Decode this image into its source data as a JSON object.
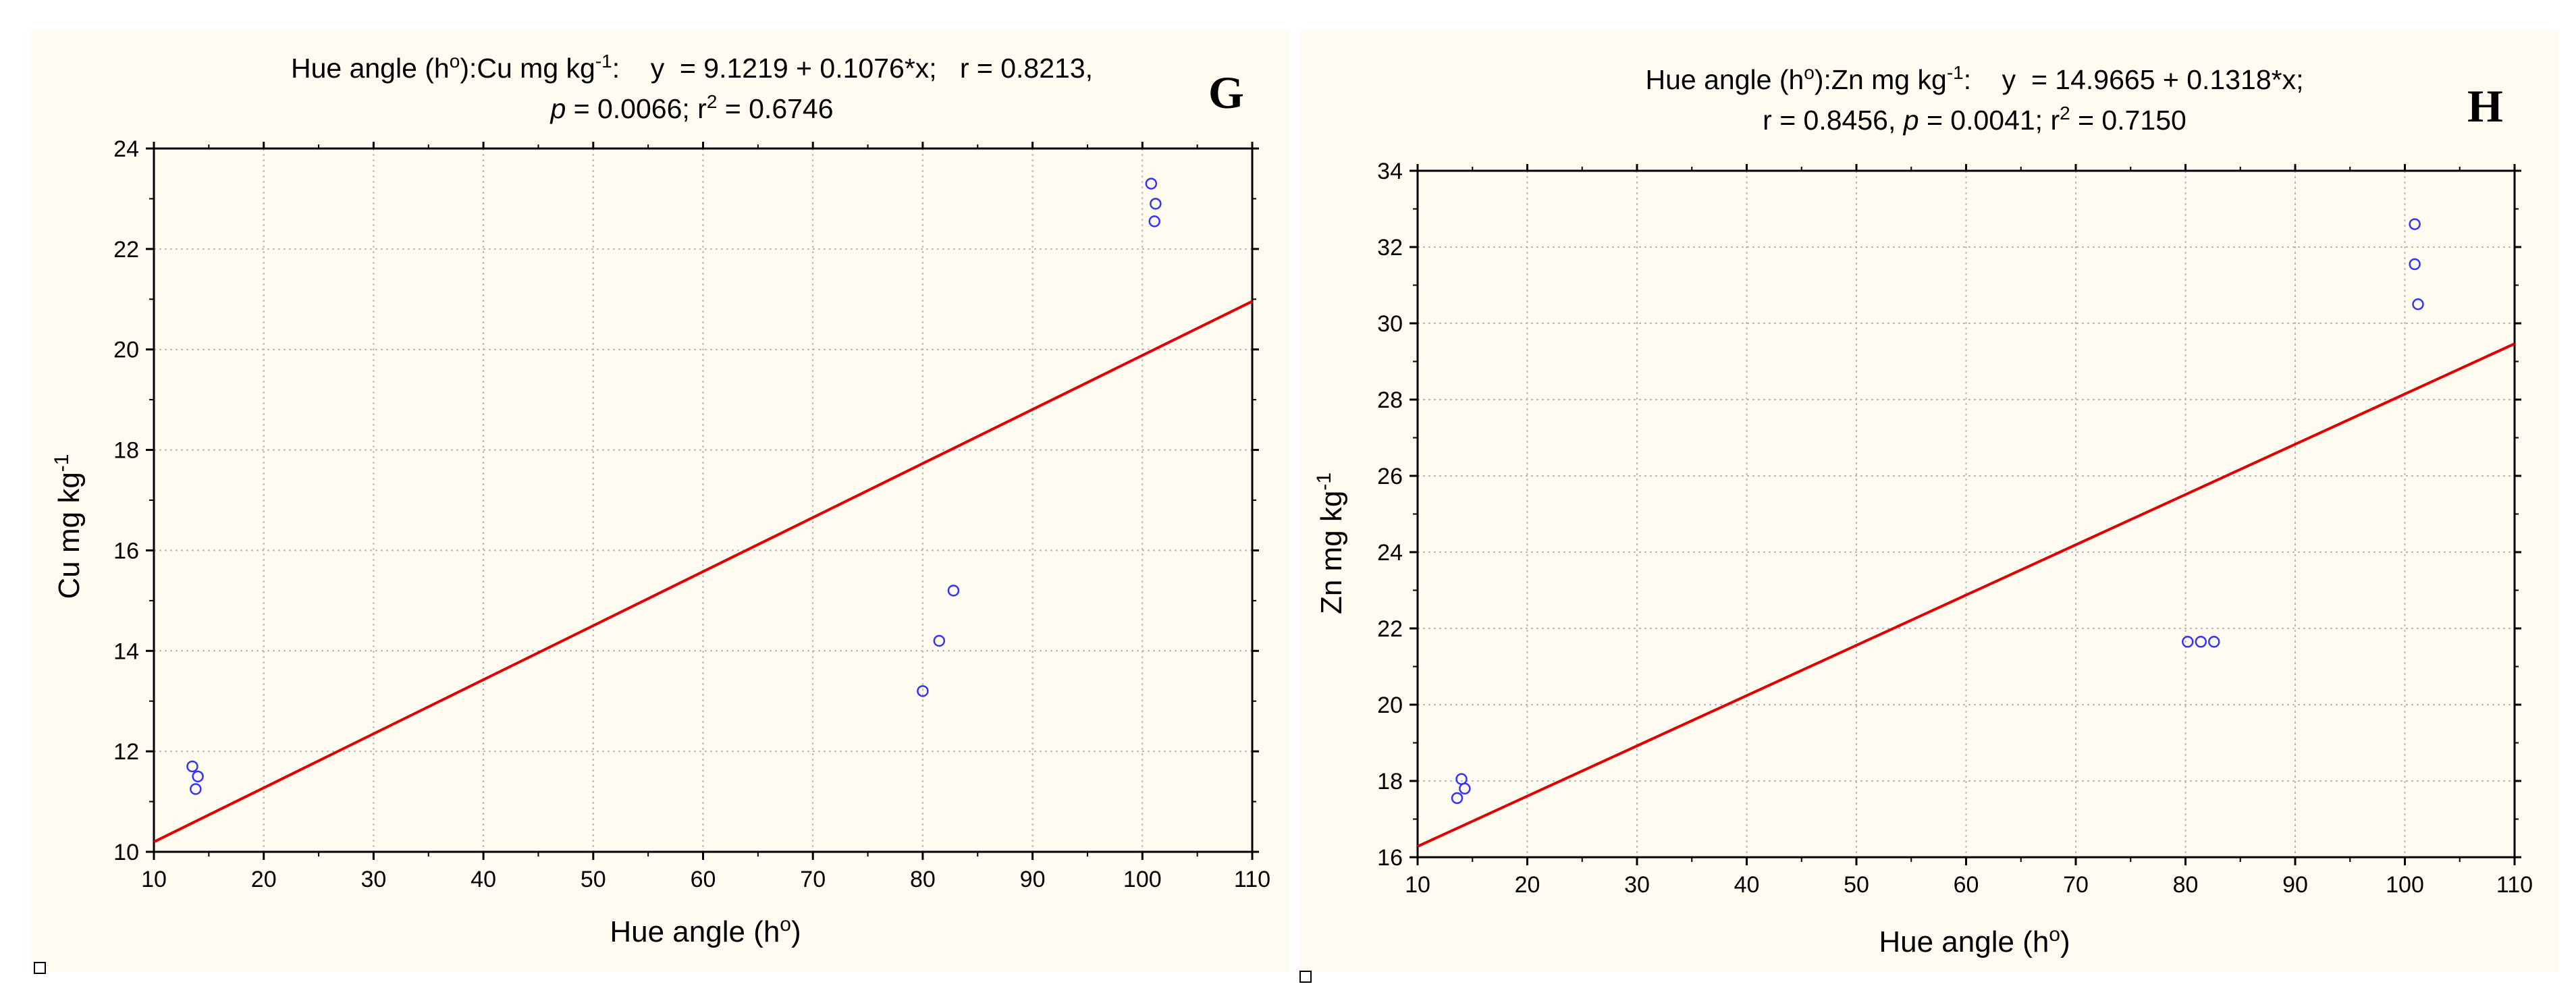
{
  "chart_data": [
    {
      "type": "scatter",
      "panel_letter": "G",
      "title_line1": {
        "pre": "Hue angle (h",
        "sup1": "o",
        "mid": "):Cu mg kg",
        "sup2": "-1",
        "post": ":    y  = 9.1219 + 0.1076*x;   r = 0.8213,"
      },
      "title_line2": {
        "p": "p",
        "p_rest": " = 0.0066; r",
        "sup": "2",
        "post": " = 0.6746"
      },
      "xlabel": {
        "text": "Hue angle (h",
        "sup": "o",
        "close": ")"
      },
      "ylabel": {
        "text": "Cu mg kg",
        "sup": "-1"
      },
      "xlim": [
        10,
        110
      ],
      "ylim": [
        10,
        24
      ],
      "xticks": [
        "10",
        "20",
        "30",
        "40",
        "50",
        "60",
        "70",
        "80",
        "90",
        "100",
        "110"
      ],
      "yticks": [
        "10",
        "12",
        "14",
        "16",
        "18",
        "20",
        "22",
        "24"
      ],
      "grid": true,
      "regression": {
        "intercept": 9.1219,
        "slope": 0.1076,
        "color": "#e00000"
      },
      "marker_color": "#3333ff",
      "points": [
        {
          "x": 13.5,
          "y": 11.7
        },
        {
          "x": 14.0,
          "y": 11.5
        },
        {
          "x": 13.8,
          "y": 11.25
        },
        {
          "x": 80.0,
          "y": 13.2
        },
        {
          "x": 81.5,
          "y": 14.2
        },
        {
          "x": 82.8,
          "y": 15.2
        },
        {
          "x": 100.8,
          "y": 23.3
        },
        {
          "x": 101.2,
          "y": 22.9
        },
        {
          "x": 101.1,
          "y": 22.55
        }
      ]
    },
    {
      "type": "scatter",
      "panel_letter": "H",
      "title_line1": {
        "pre": "Hue angle (h",
        "sup1": "o",
        "mid": "):Zn mg kg",
        "sup2": "-1",
        "post": ":    y  = 14.9665 + 0.1318*x;"
      },
      "title_line2": {
        "p": "p",
        "p_prefix": "r = 0.8456, ",
        "p_rest": " = 0.0041; r",
        "sup": "2",
        "post": " = 0.7150"
      },
      "xlabel": {
        "text": "Hue angle (h",
        "sup": "o",
        "close": ")"
      },
      "ylabel": {
        "text": "Zn mg kg",
        "sup": "-1"
      },
      "xlim": [
        10,
        110
      ],
      "ylim": [
        16,
        34
      ],
      "xticks": [
        "10",
        "20",
        "30",
        "40",
        "50",
        "60",
        "70",
        "80",
        "90",
        "100",
        "110"
      ],
      "yticks": [
        "16",
        "18",
        "20",
        "22",
        "24",
        "26",
        "28",
        "30",
        "32",
        "34"
      ],
      "grid": true,
      "regression": {
        "intercept": 14.9665,
        "slope": 0.1318,
        "color": "#e00000"
      },
      "marker_color": "#3333ff",
      "points": [
        {
          "x": 13.6,
          "y": 17.55
        },
        {
          "x": 14.3,
          "y": 17.8
        },
        {
          "x": 14.0,
          "y": 18.05
        },
        {
          "x": 80.2,
          "y": 21.65
        },
        {
          "x": 81.4,
          "y": 21.65
        },
        {
          "x": 82.6,
          "y": 21.65
        },
        {
          "x": 100.9,
          "y": 32.6
        },
        {
          "x": 100.9,
          "y": 31.55
        },
        {
          "x": 101.2,
          "y": 30.5
        }
      ]
    }
  ]
}
